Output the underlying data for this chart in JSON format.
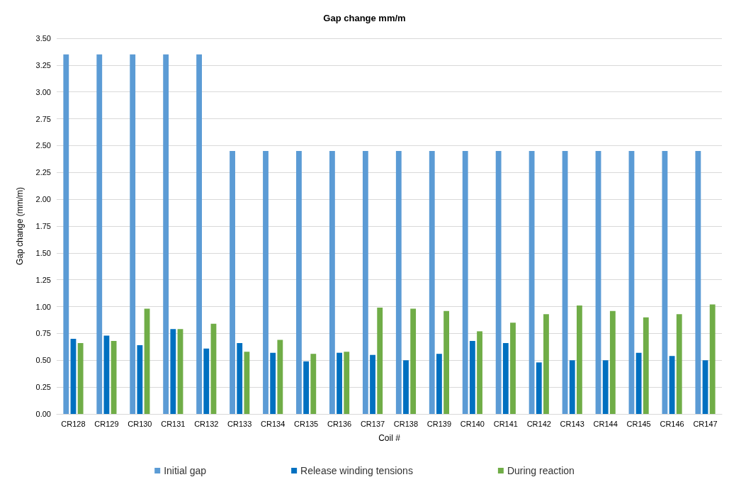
{
  "chart_data": {
    "type": "bar",
    "title": "Gap change mm/m",
    "xlabel": "Coil #",
    "ylabel": "Gap change (mm/m)",
    "categories": [
      "CR128",
      "CR129",
      "CR130",
      "CR131",
      "CR132",
      "CR133",
      "CR134",
      "CR135",
      "CR136",
      "CR137",
      "CR138",
      "CR139",
      "CR140",
      "CR141",
      "CR142",
      "CR143",
      "CR144",
      "CR145",
      "CR146",
      "CR147"
    ],
    "series": [
      {
        "name": "Initial gap",
        "color": "#5b9bd5",
        "values": [
          3.35,
          3.35,
          3.35,
          3.35,
          3.35,
          2.45,
          2.45,
          2.45,
          2.45,
          2.45,
          2.45,
          2.45,
          2.45,
          2.45,
          2.45,
          2.45,
          2.45,
          2.45,
          2.45,
          2.45
        ]
      },
      {
        "name": "Release winding tensions",
        "color": "#0070c0",
        "values": [
          0.7,
          0.73,
          0.64,
          0.79,
          0.61,
          0.66,
          0.57,
          0.49,
          0.57,
          0.55,
          0.5,
          0.56,
          0.68,
          0.66,
          0.48,
          0.5,
          0.5,
          0.57,
          0.54,
          0.5
        ]
      },
      {
        "name": "During reaction",
        "color": "#70ad47",
        "values": [
          0.66,
          0.68,
          0.98,
          0.79,
          0.84,
          0.58,
          0.69,
          0.56,
          0.58,
          0.99,
          0.98,
          0.96,
          0.77,
          0.85,
          0.93,
          1.01,
          0.96,
          0.9,
          0.93,
          1.02
        ]
      }
    ],
    "ylim": [
      0,
      3.5
    ],
    "yticks": [
      {
        "value": 0,
        "label": "0.00"
      },
      {
        "value": 0.25,
        "label": "0.25"
      },
      {
        "value": 0.5,
        "label": "0.50"
      },
      {
        "value": 0.75,
        "label": "0.75"
      },
      {
        "value": 1,
        "label": "1.00"
      },
      {
        "value": 1.25,
        "label": "1.25"
      },
      {
        "value": 1.5,
        "label": "1.50"
      },
      {
        "value": 1.75,
        "label": "1.75"
      },
      {
        "value": 2,
        "label": "2.00"
      },
      {
        "value": 2.25,
        "label": "2.25"
      },
      {
        "value": 2.5,
        "label": "2.50"
      },
      {
        "value": 2.75,
        "label": "2.75"
      },
      {
        "value": 3,
        "label": "3.00"
      },
      {
        "value": 3.25,
        "label": "3.25"
      },
      {
        "value": 3.5,
        "label": "3.50"
      }
    ],
    "grid": "y",
    "legend": "bottom"
  }
}
